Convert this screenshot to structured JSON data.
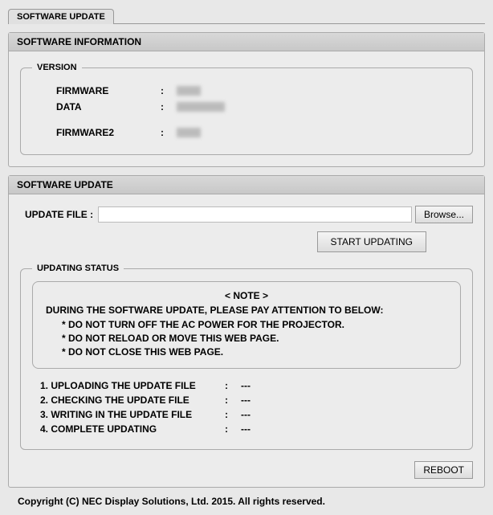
{
  "tab": {
    "label": "SOFTWARE UPDATE"
  },
  "info_panel": {
    "title": "SOFTWARE INFORMATION",
    "version_legend": "VERSION",
    "rows": [
      {
        "label": "FIRMWARE",
        "blur_width": 30
      },
      {
        "label": "DATA",
        "blur_width": 60
      },
      {
        "label": "FIRMWARE2",
        "blur_width": 30
      }
    ]
  },
  "update_panel": {
    "title": "SOFTWARE UPDATE",
    "file_label": "UPDATE FILE :",
    "browse_label": "Browse...",
    "start_label": "START UPDATING",
    "status_legend": "UPDATING STATUS",
    "note": {
      "title": "< NOTE >",
      "main": "DURING THE SOFTWARE UPDATE, PLEASE PAY ATTENTION TO BELOW:",
      "items": [
        "* DO NOT TURN OFF THE AC POWER FOR THE PROJECTOR.",
        "* DO NOT RELOAD OR MOVE THIS WEB PAGE.",
        "* DO NOT CLOSE THIS WEB PAGE."
      ]
    },
    "steps": [
      {
        "label": "1. UPLOADING THE UPDATE FILE",
        "value": "---"
      },
      {
        "label": "2. CHECKING THE UPDATE FILE",
        "value": "---"
      },
      {
        "label": "3. WRITING IN THE UPDATE FILE",
        "value": "---"
      },
      {
        "label": "4. COMPLETE UPDATING",
        "value": "---"
      }
    ],
    "reboot_label": "REBOOT"
  },
  "copyright": "Copyright (C) NEC Display Solutions, Ltd. 2015. All rights reserved."
}
